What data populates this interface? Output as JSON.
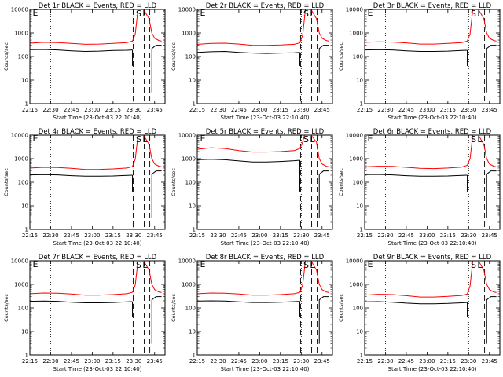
{
  "layout": "3x3-grid",
  "chart_data": [
    {
      "type": "line",
      "title": "Det 1r BLACK = Events, RED = LLD",
      "ylabel": "Counts/sec",
      "xlabel": "Start Time (23-Oct-03 22:10:40)",
      "x_tick_labels": [
        "22:15",
        "22:30",
        "22:45",
        "23:00",
        "23:15",
        "23:30",
        "23:45"
      ],
      "y_tick_labels": [
        "1",
        "10",
        "100",
        "1000",
        "10000"
      ],
      "yscale": "log",
      "ylim": [
        1,
        10000
      ],
      "x_range_minutes": [
        0,
        97.5
      ],
      "annotations": [
        {
          "text": "S",
          "x_minutes": 78.5
        },
        {
          "text": "E",
          "x_minutes": 2
        },
        {
          "text": "L",
          "x_minutes": 83
        }
      ],
      "series": [
        {
          "color": "#ff0000",
          "x_minutes": [
            0,
            10,
            20,
            30,
            40,
            50,
            60,
            70,
            74,
            76,
            78,
            80,
            82,
            86,
            88,
            90,
            93,
            95
          ],
          "values": [
            370,
            400,
            390,
            360,
            330,
            340,
            360,
            390,
            450,
            900,
            10000,
            14000,
            10000,
            4000,
            1000,
            600,
            480,
            450
          ]
        },
        {
          "color": "#000000",
          "x_minutes": [
            0,
            10,
            20,
            30,
            40,
            50,
            60,
            70,
            74
          ],
          "values": [
            195,
            200,
            190,
            175,
            165,
            170,
            180,
            185,
            190
          ]
        }
      ]
    },
    {
      "type": "line",
      "title": "Det 2r BLACK = Events, RED = LLD",
      "ylabel": "Counts/sec",
      "xlabel": "Start Time (23-Oct-03 22:10:40)",
      "x_tick_labels": [
        "22:15",
        "22:30",
        "22:45",
        "23:00",
        "23:15",
        "23:30",
        "23:45"
      ],
      "y_tick_labels": [
        "1",
        "10",
        "100",
        "1000",
        "10000"
      ],
      "yscale": "log",
      "ylim": [
        1,
        10000
      ],
      "x_range_minutes": [
        0,
        97.5
      ],
      "annotations": [
        {
          "text": "S",
          "x_minutes": 78.5
        },
        {
          "text": "E",
          "x_minutes": 2
        },
        {
          "text": "L",
          "x_minutes": 83
        }
      ],
      "series": [
        {
          "color": "#ff0000",
          "x_minutes": [
            0,
            10,
            20,
            30,
            40,
            50,
            60,
            70,
            74,
            76,
            78,
            80,
            82,
            86,
            88,
            90,
            93,
            95
          ],
          "values": [
            330,
            360,
            370,
            340,
            300,
            300,
            310,
            330,
            380,
            800,
            10000,
            14000,
            10000,
            4000,
            1000,
            600,
            480,
            450
          ]
        },
        {
          "color": "#000000",
          "x_minutes": [
            0,
            10,
            20,
            30,
            40,
            50,
            60,
            70,
            74
          ],
          "values": [
            150,
            160,
            165,
            150,
            140,
            135,
            140,
            145,
            150
          ]
        }
      ]
    },
    {
      "type": "line",
      "title": "Det 3r BLACK = Events, RED = LLD",
      "ylabel": "Counts/sec",
      "xlabel": "Start Time (23-Oct-03 22:10:40)",
      "x_tick_labels": [
        "22:15",
        "22:30",
        "22:45",
        "23:00",
        "23:15",
        "23:30",
        "23:45"
      ],
      "y_tick_labels": [
        "1",
        "10",
        "100",
        "1000",
        "10000"
      ],
      "yscale": "log",
      "ylim": [
        1,
        10000
      ],
      "x_range_minutes": [
        0,
        97.5
      ],
      "annotations": [
        {
          "text": "S",
          "x_minutes": 78.5
        },
        {
          "text": "E",
          "x_minutes": 2
        },
        {
          "text": "L",
          "x_minutes": 83
        }
      ],
      "series": [
        {
          "color": "#ff0000",
          "x_minutes": [
            0,
            10,
            20,
            30,
            40,
            50,
            60,
            70,
            74,
            76,
            78,
            80,
            82,
            86,
            88,
            90,
            93,
            95
          ],
          "values": [
            400,
            420,
            410,
            380,
            340,
            340,
            360,
            390,
            450,
            900,
            10000,
            14000,
            10000,
            4000,
            1000,
            600,
            480,
            450
          ]
        },
        {
          "color": "#000000",
          "x_minutes": [
            0,
            10,
            20,
            30,
            40,
            50,
            60,
            70,
            74
          ],
          "values": [
            190,
            195,
            190,
            175,
            165,
            165,
            170,
            180,
            185
          ]
        }
      ]
    },
    {
      "type": "line",
      "title": "Det 4r BLACK = Events, RED = LLD",
      "ylabel": "Counts/sec",
      "xlabel": "Start Time (23-Oct-03 22:10:40)",
      "x_tick_labels": [
        "22:15",
        "22:30",
        "22:45",
        "23:00",
        "23:15",
        "23:30",
        "23:45"
      ],
      "y_tick_labels": [
        "1",
        "10",
        "100",
        "1000",
        "10000"
      ],
      "yscale": "log",
      "ylim": [
        1,
        10000
      ],
      "x_range_minutes": [
        0,
        97.5
      ],
      "annotations": [
        {
          "text": "S",
          "x_minutes": 78.5
        },
        {
          "text": "E",
          "x_minutes": 2
        },
        {
          "text": "L",
          "x_minutes": 83
        }
      ],
      "series": [
        {
          "color": "#ff0000",
          "x_minutes": [
            0,
            10,
            20,
            30,
            40,
            50,
            60,
            70,
            74,
            76,
            78,
            80,
            82,
            86,
            88,
            90,
            93,
            95
          ],
          "values": [
            400,
            430,
            420,
            390,
            350,
            350,
            370,
            400,
            460,
            950,
            10000,
            14000,
            10000,
            4000,
            1000,
            600,
            480,
            450
          ]
        },
        {
          "color": "#000000",
          "x_minutes": [
            0,
            10,
            20,
            30,
            40,
            50,
            60,
            70,
            74
          ],
          "values": [
            205,
            210,
            205,
            190,
            180,
            180,
            185,
            195,
            200
          ]
        }
      ]
    },
    {
      "type": "line",
      "title": "Det 5r BLACK = Events, RED = LLD",
      "ylabel": "Counts/sec",
      "xlabel": "Start Time (23-Oct-03 22:10:40)",
      "x_tick_labels": [
        "22:15",
        "22:30",
        "22:45",
        "23:00",
        "23:15",
        "23:30",
        "23:45"
      ],
      "y_tick_labels": [
        "1",
        "10",
        "100",
        "1000",
        "10000"
      ],
      "yscale": "log",
      "ylim": [
        1,
        10000
      ],
      "x_range_minutes": [
        0,
        97.5
      ],
      "annotations": [
        {
          "text": "S",
          "x_minutes": 78.5
        },
        {
          "text": "E",
          "x_minutes": 2
        },
        {
          "text": "L",
          "x_minutes": 83
        }
      ],
      "series": [
        {
          "color": "#ff0000",
          "x_minutes": [
            0,
            10,
            20,
            30,
            40,
            50,
            60,
            70,
            74,
            76,
            78,
            80,
            82,
            86,
            88,
            90,
            93,
            95
          ],
          "values": [
            2500,
            2900,
            2700,
            2200,
            1900,
            1900,
            2000,
            2200,
            2700,
            5000,
            14000,
            14000,
            10000,
            5000,
            1000,
            600,
            480,
            450
          ]
        },
        {
          "color": "#000000",
          "x_minutes": [
            0,
            10,
            20,
            30,
            40,
            50,
            60,
            70,
            74
          ],
          "values": [
            900,
            950,
            900,
            800,
            720,
            720,
            760,
            820,
            860
          ]
        }
      ]
    },
    {
      "type": "line",
      "title": "Det 6r BLACK = Events, RED = LLD",
      "ylabel": "Counts/sec",
      "xlabel": "Start Time (23-Oct-03 22:10:40)",
      "x_tick_labels": [
        "22:15",
        "22:30",
        "22:45",
        "23:00",
        "23:15",
        "23:30",
        "23:45"
      ],
      "y_tick_labels": [
        "1",
        "10",
        "100",
        "1000",
        "10000"
      ],
      "yscale": "log",
      "ylim": [
        1,
        10000
      ],
      "x_range_minutes": [
        0,
        97.5
      ],
      "annotations": [
        {
          "text": "S",
          "x_minutes": 78.5
        },
        {
          "text": "E",
          "x_minutes": 2
        },
        {
          "text": "L",
          "x_minutes": 83
        }
      ],
      "series": [
        {
          "color": "#ff0000",
          "x_minutes": [
            0,
            10,
            20,
            30,
            40,
            50,
            60,
            70,
            74,
            76,
            78,
            80,
            82,
            86,
            88,
            90,
            93,
            95
          ],
          "values": [
            450,
            480,
            470,
            430,
            390,
            380,
            400,
            440,
            520,
            1000,
            10000,
            14000,
            10000,
            4000,
            1000,
            600,
            480,
            450
          ]
        },
        {
          "color": "#000000",
          "x_minutes": [
            0,
            10,
            20,
            30,
            40,
            50,
            60,
            70,
            74
          ],
          "values": [
            210,
            215,
            205,
            190,
            180,
            180,
            185,
            195,
            200
          ]
        }
      ]
    },
    {
      "type": "line",
      "title": "Det 7r BLACK = Events, RED = LLD",
      "ylabel": "Counts/sec",
      "xlabel": "Start Time (23-Oct-03 22:10:40)",
      "x_tick_labels": [
        "22:15",
        "22:30",
        "22:45",
        "23:00",
        "23:15",
        "23:30",
        "23:45"
      ],
      "y_tick_labels": [
        "1",
        "10",
        "100",
        "1000",
        "10000"
      ],
      "yscale": "log",
      "ylim": [
        1,
        10000
      ],
      "x_range_minutes": [
        0,
        97.5
      ],
      "annotations": [
        {
          "text": "S",
          "x_minutes": 78.5
        },
        {
          "text": "E",
          "x_minutes": 2
        },
        {
          "text": "L",
          "x_minutes": 83
        }
      ],
      "series": [
        {
          "color": "#ff0000",
          "x_minutes": [
            0,
            10,
            20,
            30,
            40,
            50,
            60,
            70,
            74,
            76,
            78,
            80,
            82,
            86,
            88,
            90,
            93,
            95
          ],
          "values": [
            400,
            430,
            420,
            390,
            350,
            350,
            370,
            400,
            460,
            950,
            10000,
            14000,
            10000,
            4000,
            1000,
            600,
            480,
            450
          ]
        },
        {
          "color": "#000000",
          "x_minutes": [
            0,
            10,
            20,
            30,
            40,
            50,
            60,
            70,
            74
          ],
          "values": [
            190,
            195,
            190,
            175,
            165,
            165,
            170,
            180,
            185
          ]
        }
      ]
    },
    {
      "type": "line",
      "title": "Det 8r BLACK = Events, RED = LLD",
      "ylabel": "Counts/sec",
      "xlabel": "Start Time (23-Oct-03 22:10:40)",
      "x_tick_labels": [
        "22:15",
        "22:30",
        "22:45",
        "23:00",
        "23:15",
        "23:30",
        "23:45"
      ],
      "y_tick_labels": [
        "1",
        "10",
        "100",
        "1000",
        "10000"
      ],
      "yscale": "log",
      "ylim": [
        1,
        10000
      ],
      "x_range_minutes": [
        0,
        97.5
      ],
      "annotations": [
        {
          "text": "S",
          "x_minutes": 78.5
        },
        {
          "text": "E",
          "x_minutes": 2
        },
        {
          "text": "L",
          "x_minutes": 83
        }
      ],
      "series": [
        {
          "color": "#ff0000",
          "x_minutes": [
            0,
            10,
            20,
            30,
            40,
            50,
            60,
            70,
            74,
            76,
            78,
            80,
            82,
            86,
            88,
            90,
            93,
            95
          ],
          "values": [
            400,
            430,
            420,
            390,
            350,
            350,
            370,
            400,
            460,
            950,
            10000,
            14000,
            10000,
            4000,
            1000,
            600,
            480,
            450
          ]
        },
        {
          "color": "#000000",
          "x_minutes": [
            0,
            10,
            20,
            30,
            40,
            50,
            60,
            70,
            74
          ],
          "values": [
            195,
            200,
            195,
            180,
            170,
            170,
            175,
            185,
            190
          ]
        }
      ]
    },
    {
      "type": "line",
      "title": "Det 9r BLACK = Events, RED = LLD",
      "ylabel": "Counts/sec",
      "xlabel": "Start Time (23-Oct-03 22:10:40)",
      "x_tick_labels": [
        "22:15",
        "22:30",
        "22:45",
        "23:00",
        "23:15",
        "23:30",
        "23:45"
      ],
      "y_tick_labels": [
        "1",
        "10",
        "100",
        "1000",
        "10000"
      ],
      "yscale": "log",
      "ylim": [
        1,
        10000
      ],
      "x_range_minutes": [
        0,
        97.5
      ],
      "annotations": [
        {
          "text": "S",
          "x_minutes": 78.5
        },
        {
          "text": "E",
          "x_minutes": 2
        },
        {
          "text": "L",
          "x_minutes": 83
        }
      ],
      "series": [
        {
          "color": "#ff0000",
          "x_minutes": [
            0,
            10,
            20,
            30,
            40,
            50,
            60,
            70,
            74,
            76,
            78,
            80,
            82,
            86,
            88,
            90,
            93,
            95
          ],
          "values": [
            350,
            380,
            370,
            330,
            290,
            290,
            310,
            340,
            390,
            850,
            10000,
            14000,
            10000,
            4000,
            1000,
            600,
            480,
            450
          ]
        },
        {
          "color": "#000000",
          "x_minutes": [
            0,
            10,
            20,
            30,
            40,
            50,
            60,
            70,
            74
          ],
          "values": [
            180,
            185,
            175,
            160,
            150,
            150,
            155,
            165,
            170
          ]
        }
      ]
    }
  ]
}
